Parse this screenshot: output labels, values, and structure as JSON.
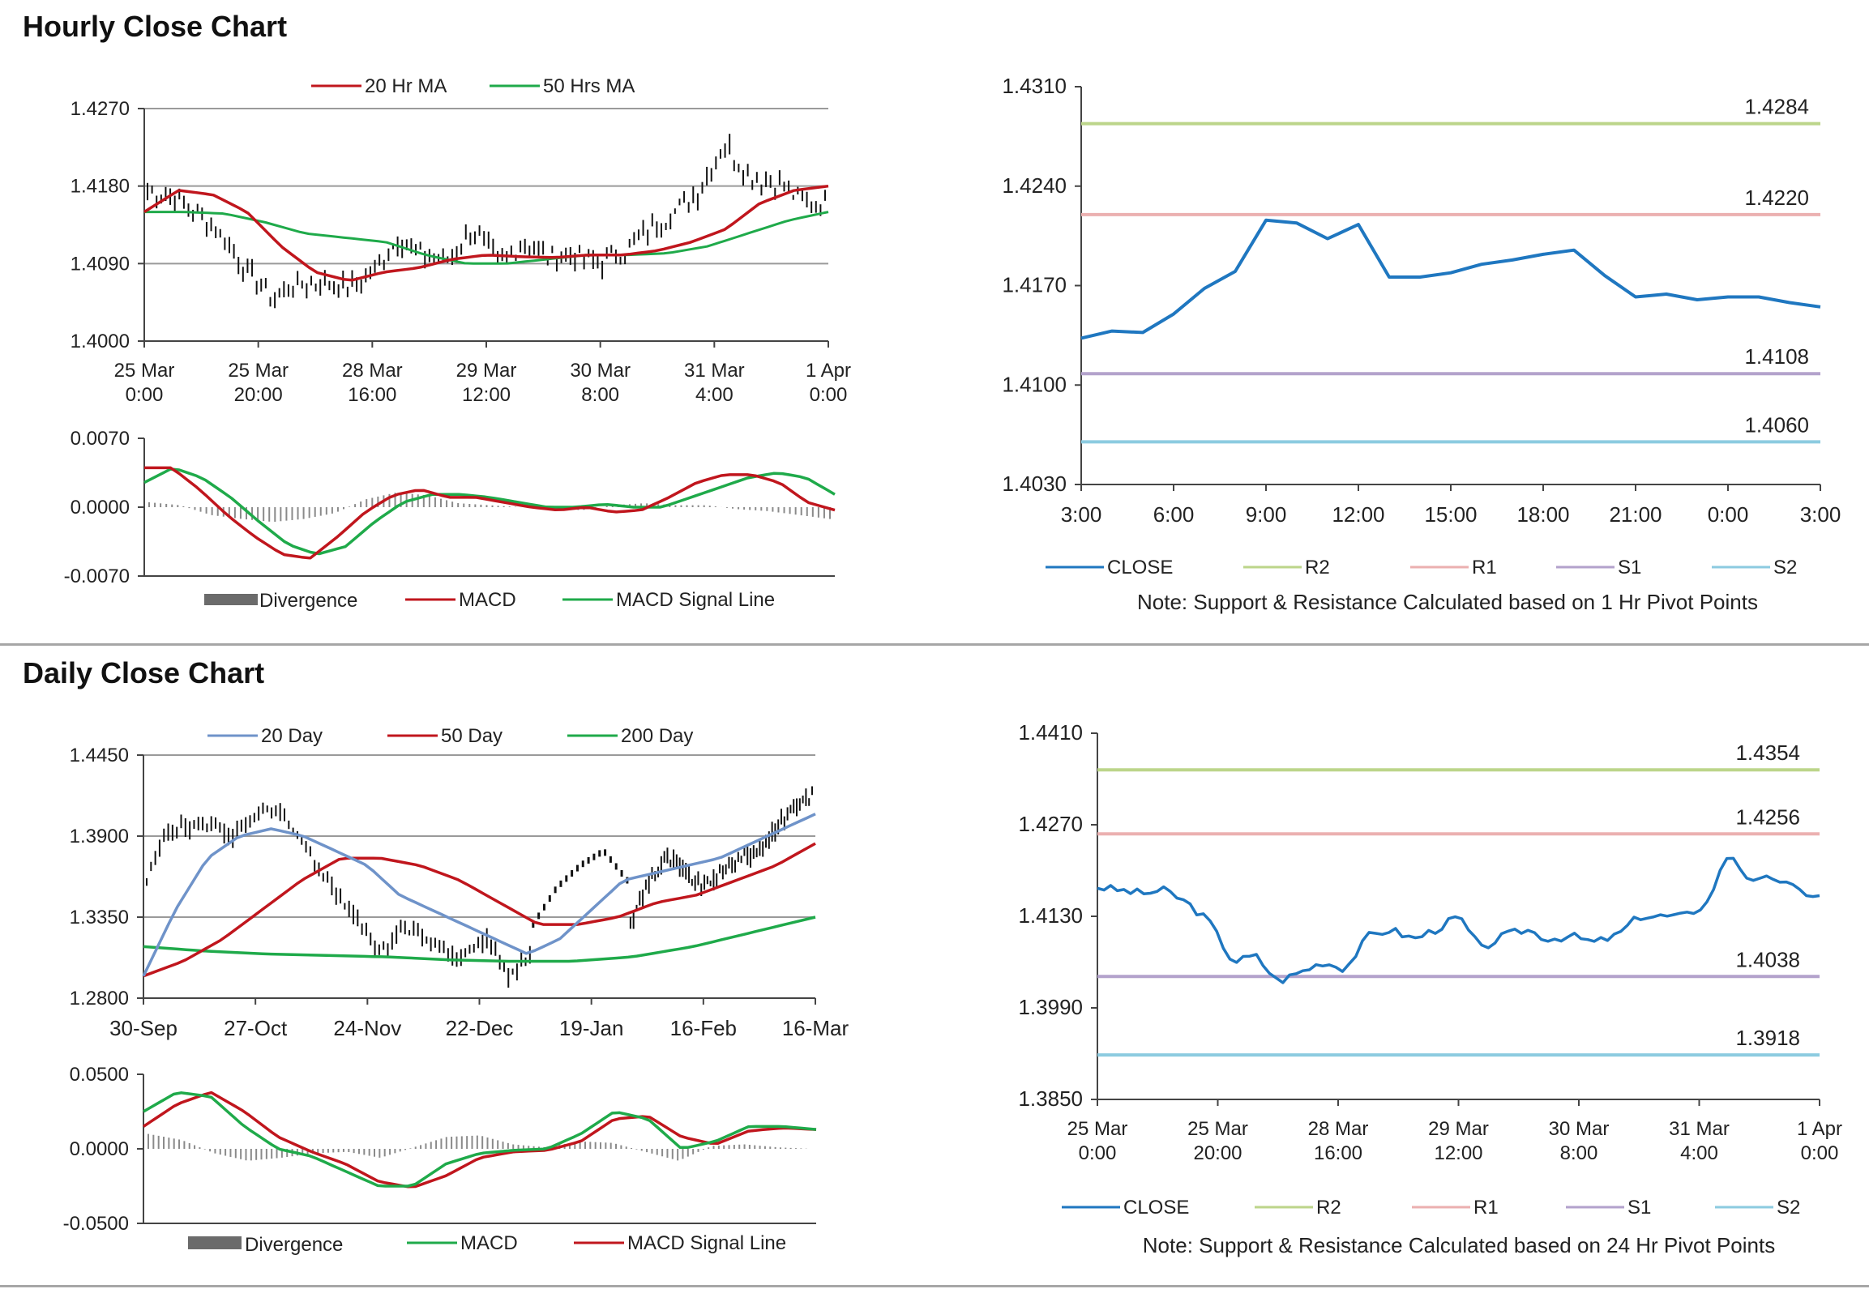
{
  "sections": {
    "hourly_title": "Hourly Close Chart",
    "daily_title": "Daily Close Chart"
  },
  "colors": {
    "ma_short": "#c0161d",
    "ma_long": "#1faa4a",
    "ma_20day": "#6f93c9",
    "close": "#1f77c0",
    "r2": "#bcd58a",
    "r1": "#ebb0b0",
    "s1": "#b3a2cc",
    "s2": "#8ccbe0",
    "divergence": "#6b6b6b",
    "price": "#111111"
  },
  "chart_data": [
    {
      "id": "hourly_price",
      "type": "candlestick",
      "title": "",
      "ylim": [
        1.4,
        1.427
      ],
      "yticks": [
        "1.4270",
        "1.4180",
        "1.4090",
        "1.4000"
      ],
      "yticks_values": [
        1.427,
        1.418,
        1.409,
        1.4
      ],
      "xticks": [
        [
          "25 Mar",
          "0:00"
        ],
        [
          "25 Mar",
          "20:00"
        ],
        [
          "28 Mar",
          "16:00"
        ],
        [
          "29 Mar",
          "12:00"
        ],
        [
          "30 Mar",
          "8:00"
        ],
        [
          "31 Mar",
          "4:00"
        ],
        [
          "1 Apr",
          "0:00"
        ]
      ],
      "grid": true,
      "legend": [
        "20 Hr MA",
        "50 Hrs MA"
      ],
      "close_anchors": [
        1.4175,
        1.4168,
        1.415,
        1.412,
        1.408,
        1.405,
        1.4065,
        1.4068,
        1.406,
        1.408,
        1.412,
        1.41,
        1.4095,
        1.413,
        1.409,
        1.4115,
        1.4095,
        1.41,
        1.409,
        1.4105,
        1.413,
        1.415,
        1.4175,
        1.423,
        1.419,
        1.4185,
        1.4165,
        1.416
      ],
      "ma20_anchors": [
        1.415,
        1.4175,
        1.417,
        1.415,
        1.411,
        1.408,
        1.407,
        1.408,
        1.4085,
        1.4095,
        1.41,
        1.4098,
        1.4097,
        1.41,
        1.41,
        1.4105,
        1.4115,
        1.413,
        1.416,
        1.4175,
        1.418
      ],
      "ma50_anchors": [
        1.415,
        1.415,
        1.4148,
        1.4138,
        1.4125,
        1.412,
        1.4115,
        1.41,
        1.409,
        1.409,
        1.4095,
        1.41,
        1.41,
        1.4102,
        1.411,
        1.4125,
        1.414,
        1.415
      ]
    },
    {
      "id": "hourly_macd",
      "type": "line",
      "ylim": [
        -0.007,
        0.007
      ],
      "yticks": [
        "0.0070",
        "0.0000",
        "-0.0070"
      ],
      "yticks_values": [
        0.007,
        0.0,
        -0.007
      ],
      "legend": [
        "Divergence",
        "MACD",
        "MACD Signal Line"
      ],
      "macd_anchors": [
        0.004,
        0.004,
        0.0018,
        -0.0008,
        -0.003,
        -0.0048,
        -0.0052,
        -0.003,
        -0.0005,
        0.0012,
        0.0018,
        0.001,
        0.001,
        0.0005,
        0.0,
        -0.0003,
        0.0,
        -0.0005,
        -0.0003,
        0.001,
        0.0025,
        0.0033,
        0.0033,
        0.0025,
        0.0005,
        -0.0003
      ],
      "signal_anchors": [
        0.0025,
        0.004,
        0.003,
        0.001,
        -0.0015,
        -0.0038,
        -0.0048,
        -0.004,
        -0.0015,
        0.0005,
        0.0013,
        0.0013,
        0.001,
        0.0005,
        0.0,
        0.0,
        0.0003,
        0.0,
        0.0,
        0.001,
        0.002,
        0.003,
        0.0035,
        0.003,
        0.0013
      ],
      "divergence_anchors": [
        0.0005,
        0.0002,
        -0.0008,
        -0.0012,
        -0.0015,
        -0.0012,
        -0.0006,
        0.0008,
        0.0015,
        0.0012,
        0.0004,
        0.0002,
        0.0,
        -0.0002,
        -0.0003,
        0.0002,
        0.0004,
        0.0002,
        0.0002,
        -0.0002,
        -0.0004,
        -0.0008,
        -0.0012
      ]
    },
    {
      "id": "hourly_close_pivots",
      "type": "line",
      "ylim": [
        1.403,
        1.431
      ],
      "yticks": [
        "1.4310",
        "1.4240",
        "1.4170",
        "1.4100",
        "1.4030"
      ],
      "yticks_values": [
        1.431,
        1.424,
        1.417,
        1.41,
        1.403
      ],
      "xticks": [
        "3:00",
        "6:00",
        "9:00",
        "12:00",
        "15:00",
        "18:00",
        "21:00",
        "0:00",
        "3:00"
      ],
      "x": [
        0,
        1,
        2,
        3,
        4,
        5,
        6,
        7,
        8,
        9,
        10,
        11,
        12,
        13,
        14,
        15,
        16,
        17,
        18,
        19,
        20,
        21,
        22,
        23,
        24
      ],
      "close": [
        1.4133,
        1.4138,
        1.4137,
        1.415,
        1.4168,
        1.418,
        1.4216,
        1.4214,
        1.4203,
        1.4213,
        1.4176,
        1.4176,
        1.4179,
        1.4185,
        1.4188,
        1.4192,
        1.4195,
        1.4177,
        1.4162,
        1.4164,
        1.416,
        1.4162,
        1.4162,
        1.4158,
        1.4155
      ],
      "levels": [
        {
          "name": "R2",
          "value": 1.4284,
          "label": "1.4284"
        },
        {
          "name": "R1",
          "value": 1.422,
          "label": "1.4220"
        },
        {
          "name": "S1",
          "value": 1.4108,
          "label": "1.4108"
        },
        {
          "name": "S2",
          "value": 1.406,
          "label": "1.4060"
        }
      ],
      "legend": [
        "CLOSE",
        "R2",
        "R1",
        "S1",
        "S2"
      ],
      "note": "Note: Support & Resistance Calculated based on 1 Hr Pivot Points"
    },
    {
      "id": "daily_price",
      "type": "candlestick",
      "ylim": [
        1.28,
        1.445
      ],
      "yticks": [
        "1.4450",
        "1.3900",
        "1.3350",
        "1.2800"
      ],
      "yticks_values": [
        1.445,
        1.39,
        1.335,
        1.28
      ],
      "xticks": [
        "30-Sep",
        "27-Oct",
        "24-Nov",
        "22-Dec",
        "19-Jan",
        "16-Feb",
        "16-Mar"
      ],
      "grid": true,
      "legend": [
        "20 Day",
        "50 Day",
        "200 Day"
      ],
      "close_anchors": [
        1.36,
        1.395,
        1.395,
        1.4,
        1.39,
        1.4,
        1.41,
        1.39,
        1.37,
        1.35,
        1.33,
        1.31,
        1.33,
        1.32,
        1.31,
        1.31,
        1.32,
        1.295,
        1.31,
        1.33,
        1.36,
        1.375,
        1.365,
        1.355,
        1.365,
        1.375,
        1.38,
        1.395,
        1.41,
        1.418
      ],
      "ma20_anchors": [
        1.295,
        1.34,
        1.375,
        1.39,
        1.395,
        1.39,
        1.38,
        1.37,
        1.35,
        1.34,
        1.33,
        1.32,
        1.31,
        1.32,
        1.34,
        1.36,
        1.365,
        1.37,
        1.375,
        1.385,
        1.395,
        1.405
      ],
      "ma50_anchors": [
        1.295,
        1.305,
        1.32,
        1.34,
        1.36,
        1.375,
        1.375,
        1.37,
        1.36,
        1.345,
        1.33,
        1.33,
        1.335,
        1.345,
        1.35,
        1.36,
        1.37,
        1.385
      ],
      "ma200_anchors": [
        1.315,
        1.312,
        1.31,
        1.309,
        1.308,
        1.306,
        1.305,
        1.305,
        1.308,
        1.315,
        1.325,
        1.335
      ],
      "dotted_gap_anchors": [
        1.33,
        1.355,
        1.37,
        1.38,
        1.36
      ]
    },
    {
      "id": "daily_macd",
      "type": "line",
      "ylim": [
        -0.05,
        0.05
      ],
      "yticks": [
        "0.0500",
        "0.0000",
        "-0.0500"
      ],
      "yticks_values": [
        0.05,
        0.0,
        -0.05
      ],
      "legend": [
        "Divergence",
        "MACD",
        "MACD Signal Line"
      ],
      "macd_anchors": [
        0.025,
        0.038,
        0.035,
        0.015,
        0.0,
        -0.005,
        -0.015,
        -0.025,
        -0.025,
        -0.01,
        -0.003,
        -0.001,
        0.0,
        0.01,
        0.025,
        0.02,
        0.0,
        0.005,
        0.015,
        0.015,
        0.013
      ],
      "signal_anchors": [
        0.015,
        0.03,
        0.038,
        0.025,
        0.008,
        -0.002,
        -0.01,
        -0.022,
        -0.026,
        -0.018,
        -0.006,
        -0.002,
        -0.001,
        0.005,
        0.02,
        0.022,
        0.008,
        0.003,
        0.012,
        0.014,
        0.013
      ],
      "divergence_anchors": [
        0.01,
        0.006,
        -0.003,
        -0.008,
        -0.006,
        -0.003,
        -0.002,
        -0.006,
        0.001,
        0.008,
        0.009,
        0.003,
        0.001,
        0.005,
        0.004,
        -0.002,
        -0.008,
        0.002,
        0.003,
        0.001,
        0.0
      ]
    },
    {
      "id": "daily_close_pivots",
      "type": "line",
      "ylim": [
        1.385,
        1.441
      ],
      "yticks": [
        "1.4410",
        "1.4270",
        "1.4130",
        "1.3990",
        "1.3850"
      ],
      "yticks_values": [
        1.441,
        1.427,
        1.413,
        1.399,
        1.385
      ],
      "xticks": [
        [
          "25 Mar",
          "0:00"
        ],
        [
          "25 Mar",
          "20:00"
        ],
        [
          "28 Mar",
          "16:00"
        ],
        [
          "29 Mar",
          "12:00"
        ],
        [
          "30 Mar",
          "8:00"
        ],
        [
          "31 Mar",
          "4:00"
        ],
        [
          "1 Apr",
          "0:00"
        ]
      ],
      "close_anchors": [
        1.4175,
        1.417,
        1.4165,
        1.417,
        1.415,
        1.412,
        1.406,
        1.407,
        1.403,
        1.4045,
        1.406,
        1.405,
        1.41,
        1.411,
        1.4095,
        1.411,
        1.413,
        1.408,
        1.41,
        1.411,
        1.4095,
        1.41,
        1.409,
        1.41,
        1.413,
        1.413,
        1.413,
        1.415,
        1.423,
        1.418,
        1.419,
        1.417,
        1.416
      ],
      "levels": [
        {
          "name": "R2",
          "value": 1.4354,
          "label": "1.4354"
        },
        {
          "name": "R1",
          "value": 1.4256,
          "label": "1.4256"
        },
        {
          "name": "S1",
          "value": 1.4038,
          "label": "1.4038"
        },
        {
          "name": "S2",
          "value": 1.3918,
          "label": "1.3918"
        }
      ],
      "legend": [
        "CLOSE",
        "R2",
        "R1",
        "S1",
        "S2"
      ],
      "note": "Note: Support & Resistance Calculated based on 24 Hr Pivot Points"
    }
  ]
}
